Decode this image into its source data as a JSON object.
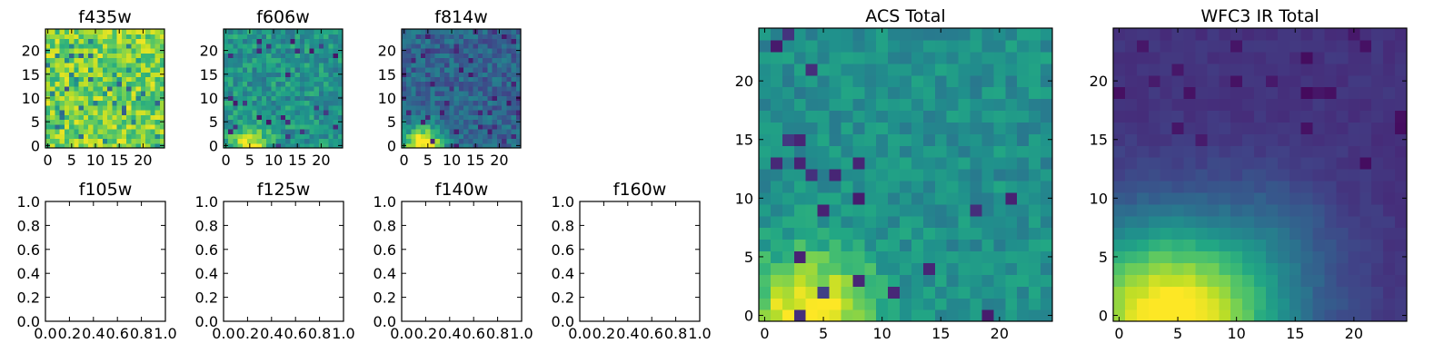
{
  "chart_data": [
    {
      "id": "f435w",
      "type": "heatmap",
      "title": "f435w",
      "xticks": [
        "0",
        "5",
        "10",
        "15",
        "20"
      ],
      "yticks": [
        "0",
        "5",
        "10",
        "15",
        "20"
      ],
      "xlim": [
        -0.5,
        24.5
      ],
      "ylim": [
        -0.5,
        24.5
      ],
      "grid_size": [
        25,
        25
      ],
      "colormap": "viridis",
      "pattern": "mostly bright yellow-green noise, scattered darker pixels"
    },
    {
      "id": "f606w",
      "type": "heatmap",
      "title": "f606w",
      "xticks": [
        "0",
        "5",
        "10",
        "15",
        "20"
      ],
      "yticks": [
        "0",
        "5",
        "10",
        "15",
        "20"
      ],
      "xlim": [
        -0.5,
        24.5
      ],
      "ylim": [
        -0.5,
        24.5
      ],
      "grid_size": [
        25,
        25
      ],
      "colormap": "viridis",
      "pattern": "green noise, yellow blob at bottom-left"
    },
    {
      "id": "f814w",
      "type": "heatmap",
      "title": "f814w",
      "xticks": [
        "0",
        "5",
        "10",
        "15",
        "20"
      ],
      "yticks": [
        "0",
        "5",
        "10",
        "15",
        "20"
      ],
      "xlim": [
        -0.5,
        24.5
      ],
      "ylim": [
        -0.5,
        24.5
      ],
      "grid_size": [
        25,
        25
      ],
      "colormap": "viridis",
      "pattern": "teal/blue noise, bright yellow blob at bottom-left"
    },
    {
      "id": "f105w",
      "type": "empty",
      "title": "f105w",
      "xticks": [
        "0.0",
        "0.2",
        "0.4",
        "0.6",
        "0.8",
        "1.0"
      ],
      "yticks": [
        "0.0",
        "0.2",
        "0.4",
        "0.6",
        "0.8",
        "1.0"
      ],
      "xlim": [
        0,
        1
      ],
      "ylim": [
        0,
        1
      ]
    },
    {
      "id": "f125w",
      "type": "empty",
      "title": "f125w",
      "xticks": [
        "0.0",
        "0.2",
        "0.4",
        "0.6",
        "0.8",
        "1.0"
      ],
      "yticks": [
        "0.0",
        "0.2",
        "0.4",
        "0.6",
        "0.8",
        "1.0"
      ],
      "xlim": [
        0,
        1
      ],
      "ylim": [
        0,
        1
      ]
    },
    {
      "id": "f140w",
      "type": "empty",
      "title": "f140w",
      "xticks": [
        "0.0",
        "0.2",
        "0.4",
        "0.6",
        "0.8",
        "1.0"
      ],
      "yticks": [
        "0.0",
        "0.2",
        "0.4",
        "0.6",
        "0.8",
        "1.0"
      ],
      "xlim": [
        0,
        1
      ],
      "ylim": [
        0,
        1
      ]
    },
    {
      "id": "f160w",
      "type": "empty",
      "title": "f160w",
      "xticks": [
        "0.0",
        "0.2",
        "0.4",
        "0.6",
        "0.8",
        "1.0"
      ],
      "yticks": [
        "0.0",
        "0.2",
        "0.4",
        "0.6",
        "0.8",
        "1.0"
      ],
      "xlim": [
        0,
        1
      ],
      "ylim": [
        0,
        1
      ]
    },
    {
      "id": "acs_total",
      "type": "heatmap",
      "title": "ACS Total",
      "xticks": [
        "0",
        "5",
        "10",
        "15",
        "20"
      ],
      "yticks": [
        "0",
        "5",
        "10",
        "15",
        "20"
      ],
      "xlim": [
        -0.5,
        24.5
      ],
      "ylim": [
        -0.5,
        24.5
      ],
      "grid_size": [
        25,
        25
      ],
      "colormap": "viridis",
      "pattern": "teal-green noise, yellow blob at bottom-left, few dark pixels"
    },
    {
      "id": "wfc3_ir_total",
      "type": "heatmap",
      "title": "WFC3 IR Total",
      "xticks": [
        "0",
        "5",
        "10",
        "15",
        "20"
      ],
      "yticks": [
        "0",
        "5",
        "10",
        "15",
        "20"
      ],
      "xlim": [
        -0.5,
        24.5
      ],
      "ylim": [
        -0.5,
        24.5
      ],
      "grid_size": [
        25,
        25
      ],
      "colormap": "viridis",
      "pattern": "smooth dark purple background, bright yellow-green gradient at bottom-left"
    }
  ]
}
